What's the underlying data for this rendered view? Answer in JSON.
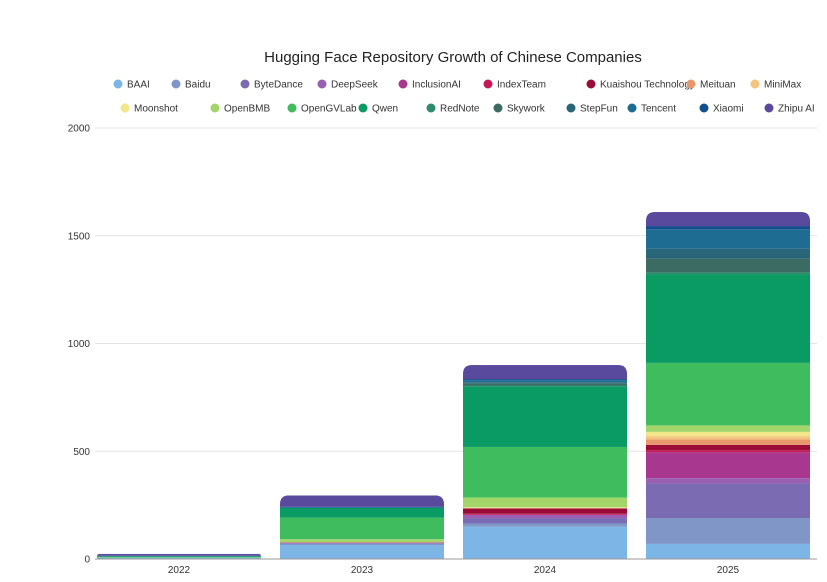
{
  "chart_data": {
    "type": "bar",
    "stacked": true,
    "title": "Hugging Face Repository Growth of Chinese Companies",
    "categories": [
      "2022",
      "2023",
      "2024",
      "2025"
    ],
    "ylim": [
      0,
      2000
    ],
    "yticks": [
      0,
      500,
      1000,
      1500,
      2000
    ],
    "xlabel": "",
    "ylabel": "",
    "legend_position": "top",
    "series": [
      {
        "name": "BAAI",
        "color": "#7cb5e6",
        "values": [
          5,
          65,
          150,
          70
        ]
      },
      {
        "name": "Baidu",
        "color": "#7f96c7",
        "values": [
          1,
          5,
          15,
          120
        ]
      },
      {
        "name": "ByteDance",
        "color": "#7b6bb3",
        "values": [
          0,
          3,
          25,
          160
        ]
      },
      {
        "name": "DeepSeek",
        "color": "#9a5fb0",
        "values": [
          0,
          2,
          15,
          25
        ]
      },
      {
        "name": "InclusionAI",
        "color": "#a8378f",
        "values": [
          0,
          0,
          0,
          120
        ]
      },
      {
        "name": "IndexTeam",
        "color": "#c31a57",
        "values": [
          0,
          1,
          5,
          10
        ]
      },
      {
        "name": "Kuaishou Technology",
        "color": "#9b0b38",
        "values": [
          0,
          1,
          25,
          25
        ]
      },
      {
        "name": "Meituan",
        "color": "#e8986a",
        "values": [
          0,
          0,
          0,
          25
        ]
      },
      {
        "name": "MiniMax",
        "color": "#f4c47e",
        "values": [
          0,
          0,
          0,
          15
        ]
      },
      {
        "name": "Moonshot",
        "color": "#f1e78a",
        "values": [
          0,
          0,
          5,
          20
        ]
      },
      {
        "name": "OpenBMB",
        "color": "#a3d56b",
        "values": [
          1,
          15,
          45,
          30
        ]
      },
      {
        "name": "OpenGVLab",
        "color": "#3fbd5e",
        "values": [
          2,
          100,
          235,
          290
        ]
      },
      {
        "name": "Qwen",
        "color": "#0a9a63",
        "values": [
          4,
          45,
          280,
          410
        ]
      },
      {
        "name": "RedNote",
        "color": "#2d8c6c",
        "values": [
          0,
          0,
          5,
          10
        ]
      },
      {
        "name": "Skywork",
        "color": "#3b6b62",
        "values": [
          0,
          0,
          10,
          65
        ]
      },
      {
        "name": "StepFun",
        "color": "#2a6679",
        "values": [
          0,
          0,
          5,
          45
        ]
      },
      {
        "name": "Tencent",
        "color": "#1f6c93",
        "values": [
          2,
          5,
          10,
          90
        ]
      },
      {
        "name": "Xiaomi",
        "color": "#134f8d",
        "values": [
          0,
          0,
          5,
          15
        ]
      },
      {
        "name": "Zhipu AI",
        "color": "#5a4a9e",
        "values": [
          9,
          53,
          65,
          65
        ]
      }
    ]
  }
}
